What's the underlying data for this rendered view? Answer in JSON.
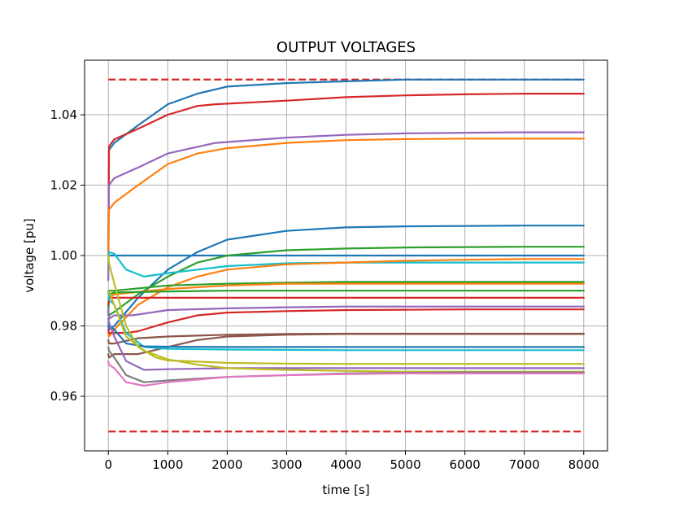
{
  "chart_data": {
    "type": "line",
    "title": "OUTPUT VOLTAGES",
    "xlabel": "time [s]",
    "ylabel": "voltage [pu]",
    "xlim": [
      -400,
      8400
    ],
    "ylim": [
      0.9445,
      1.0555
    ],
    "x_ticks": [
      0,
      1000,
      2000,
      3000,
      4000,
      5000,
      6000,
      7000,
      8000
    ],
    "x_tick_labels": [
      "0",
      "1000",
      "2000",
      "3000",
      "4000",
      "5000",
      "6000",
      "7000",
      "8000"
    ],
    "y_ticks": [
      0.96,
      0.98,
      1.0,
      1.02,
      1.04
    ],
    "y_tick_labels": [
      "0.96",
      "0.98",
      "1.00",
      "1.02",
      "1.04"
    ],
    "grid": true,
    "limits": [
      {
        "value": 1.05,
        "color": "#d62728",
        "style": "dashed"
      },
      {
        "value": 0.95,
        "color": "#d62728",
        "style": "dashed"
      }
    ],
    "series": [
      {
        "color": "#1f77b4",
        "x": [
          0,
          10,
          100,
          500,
          1000,
          1500,
          2000,
          3000,
          4000,
          5000,
          6000,
          7000,
          8000
        ],
        "y": [
          1.0,
          1.03,
          1.032,
          1.037,
          1.043,
          1.046,
          1.048,
          1.049,
          1.0495,
          1.05,
          1.05,
          1.05,
          1.05
        ]
      },
      {
        "color": "#d62728",
        "x": [
          0,
          10,
          100,
          500,
          1000,
          1500,
          1800,
          3000,
          4000,
          5000,
          6000,
          7000,
          8000
        ],
        "y": [
          1.0,
          1.031,
          1.033,
          1.036,
          1.04,
          1.0425,
          1.043,
          1.044,
          1.045,
          1.0455,
          1.0458,
          1.046,
          1.046
        ]
      },
      {
        "color": "#9467bd",
        "x": [
          0,
          10,
          100,
          500,
          1000,
          1800,
          3000,
          4000,
          5000,
          6000,
          7000,
          8000
        ],
        "y": [
          0.993,
          1.02,
          1.022,
          1.025,
          1.029,
          1.032,
          1.0335,
          1.0343,
          1.0347,
          1.0349,
          1.035,
          1.035
        ]
      },
      {
        "color": "#ff7f0e",
        "x": [
          0,
          10,
          100,
          500,
          1000,
          1500,
          2000,
          3000,
          4000,
          5000,
          6000,
          7000,
          8000
        ],
        "y": [
          1.0,
          1.013,
          1.015,
          1.02,
          1.026,
          1.029,
          1.0305,
          1.032,
          1.0328,
          1.0331,
          1.0332,
          1.0332,
          1.0332
        ]
      },
      {
        "color": "#1f77b4",
        "x": [
          0,
          10,
          100,
          500,
          1000,
          1500,
          2000,
          3000,
          4000,
          5000,
          6000,
          7000,
          8000
        ],
        "y": [
          0.98,
          0.979,
          0.98,
          0.988,
          0.996,
          1.001,
          1.0045,
          1.007,
          1.008,
          1.0083,
          1.0084,
          1.0085,
          1.0085
        ]
      },
      {
        "color": "#1f77b4",
        "x": [
          0,
          8000
        ],
        "y": [
          1.0,
          1.0
        ]
      },
      {
        "color": "#2ca02c",
        "x": [
          0,
          10,
          100,
          500,
          1000,
          1500,
          2000,
          3000,
          4000,
          5000,
          6000,
          7000,
          8000
        ],
        "y": [
          0.984,
          0.983,
          0.984,
          0.989,
          0.994,
          0.998,
          1.0,
          1.0015,
          1.002,
          1.0023,
          1.0024,
          1.0025,
          1.0025
        ]
      },
      {
        "color": "#17becf",
        "x": [
          0,
          10,
          100,
          300,
          600,
          1000,
          1500,
          2000,
          3000,
          4000,
          5000,
          6000,
          7000,
          8000
        ],
        "y": [
          0.998,
          1.001,
          1.0005,
          0.996,
          0.994,
          0.995,
          0.996,
          0.997,
          0.9978,
          0.998,
          0.998,
          0.998,
          0.998,
          0.998
        ]
      },
      {
        "color": "#ff7f0e",
        "x": [
          0,
          10,
          100,
          500,
          1000,
          1500,
          2000,
          3000,
          4000,
          5000,
          6000,
          7000,
          8000
        ],
        "y": [
          0.978,
          0.977,
          0.979,
          0.986,
          0.991,
          0.994,
          0.996,
          0.9975,
          0.998,
          0.9985,
          0.9988,
          0.999,
          0.999
        ]
      },
      {
        "color": "#2ca02c",
        "x": [
          0,
          10,
          100,
          1000,
          2000,
          3000,
          4000,
          5000,
          6000,
          7000,
          8000
        ],
        "y": [
          0.984,
          0.99,
          0.99,
          0.9915,
          0.992,
          0.9923,
          0.9925,
          0.9925,
          0.9925,
          0.9925,
          0.9925
        ]
      },
      {
        "color": "#ff7f0e",
        "x": [
          0,
          10,
          100,
          1000,
          2000,
          3000,
          4000,
          5000,
          6000,
          7000,
          8000
        ],
        "y": [
          0.984,
          0.988,
          0.989,
          0.9905,
          0.9915,
          0.992,
          0.992,
          0.992,
          0.992,
          0.992,
          0.992
        ]
      },
      {
        "color": "#2ca02c",
        "x": [
          0,
          10,
          100,
          1000,
          2000,
          3000,
          4000,
          5000,
          6000,
          7000,
          8000
        ],
        "y": [
          0.983,
          0.989,
          0.9895,
          0.9898,
          0.99,
          0.99,
          0.99,
          0.99,
          0.99,
          0.99,
          0.99
        ]
      },
      {
        "color": "#d62728",
        "x": [
          0,
          10,
          100,
          1000,
          2000,
          3000,
          4000,
          5000,
          6000,
          7000,
          8000
        ],
        "y": [
          0.986,
          0.988,
          0.988,
          0.988,
          0.988,
          0.988,
          0.988,
          0.988,
          0.988,
          0.988,
          0.988
        ]
      },
      {
        "color": "#9467bd",
        "x": [
          0,
          10,
          100,
          400,
          1000,
          2000,
          3000,
          4000,
          5000,
          6000,
          7000,
          8000
        ],
        "y": [
          0.985,
          0.982,
          0.983,
          0.983,
          0.9845,
          0.985,
          0.9853,
          0.9855,
          0.9855,
          0.9855,
          0.9855,
          0.9855
        ]
      },
      {
        "color": "#d62728",
        "x": [
          0,
          10,
          100,
          300,
          500,
          1000,
          1500,
          2000,
          3000,
          4000,
          5000,
          6000,
          7000,
          8000
        ],
        "y": [
          0.979,
          0.978,
          0.978,
          0.978,
          0.9785,
          0.981,
          0.983,
          0.9838,
          0.9842,
          0.9845,
          0.9846,
          0.9847,
          0.9847,
          0.9847
        ]
      },
      {
        "color": "#8c564b",
        "x": [
          0,
          10,
          100,
          500,
          1000,
          2000,
          3000,
          4000,
          5000,
          6000,
          7000,
          8000
        ],
        "y": [
          0.976,
          0.975,
          0.975,
          0.9765,
          0.977,
          0.9775,
          0.9777,
          0.9778,
          0.9778,
          0.9778,
          0.9778,
          0.9778
        ]
      },
      {
        "color": "#8c564b",
        "x": [
          0,
          10,
          100,
          500,
          1000,
          1500,
          2000,
          3000,
          4000,
          5000,
          6000,
          7000,
          8000
        ],
        "y": [
          0.972,
          0.971,
          0.972,
          0.972,
          0.974,
          0.976,
          0.977,
          0.9775,
          0.9777,
          0.9777,
          0.9777,
          0.9777,
          0.9777
        ]
      },
      {
        "color": "#17becf",
        "x": [
          0,
          10,
          100,
          300,
          600,
          1000,
          2000,
          3000,
          4000,
          5000,
          6000,
          7000,
          8000
        ],
        "y": [
          0.99,
          0.9875,
          0.986,
          0.978,
          0.974,
          0.9735,
          0.9733,
          0.9732,
          0.9731,
          0.9731,
          0.9731,
          0.9731,
          0.9731
        ]
      },
      {
        "color": "#1f77b4",
        "x": [
          0,
          10,
          100,
          300,
          600,
          1000,
          2000,
          3000,
          4000,
          5000,
          6000,
          7000,
          8000
        ],
        "y": [
          0.981,
          0.98,
          0.979,
          0.975,
          0.9742,
          0.9741,
          0.974,
          0.974,
          0.974,
          0.974,
          0.974,
          0.974,
          0.974
        ]
      },
      {
        "color": "#bcbd22",
        "x": [
          0,
          10,
          100,
          300,
          500,
          800,
          1000,
          2000,
          3000,
          4000,
          5000,
          6000,
          7000,
          8000
        ],
        "y": [
          1.0,
          0.998,
          0.992,
          0.98,
          0.974,
          0.971,
          0.9702,
          0.9695,
          0.9693,
          0.9692,
          0.9692,
          0.9692,
          0.9692,
          0.9692
        ]
      },
      {
        "color": "#9467bd",
        "x": [
          0,
          10,
          100,
          300,
          600,
          1000,
          2000,
          3000,
          4000,
          5000,
          6000,
          7000,
          8000
        ],
        "y": [
          0.982,
          0.981,
          0.977,
          0.97,
          0.9675,
          0.9677,
          0.968,
          0.968,
          0.968,
          0.968,
          0.968,
          0.968,
          0.968
        ]
      },
      {
        "color": "#bcbd22",
        "x": [
          0,
          10,
          100,
          300,
          600,
          1000,
          1500,
          2000,
          3000,
          4000,
          5000,
          6000,
          7000,
          8000
        ],
        "y": [
          0.99,
          0.9895,
          0.986,
          0.977,
          0.973,
          0.9705,
          0.969,
          0.968,
          0.9675,
          0.9672,
          0.967,
          0.967,
          0.967,
          0.967
        ]
      },
      {
        "color": "#7f7f7f",
        "x": [
          0,
          10,
          100,
          300,
          600,
          1000,
          2000,
          3000,
          4000,
          5000,
          6000,
          7000,
          8000
        ],
        "y": [
          0.974,
          0.973,
          0.971,
          0.966,
          0.964,
          0.9645,
          0.9655,
          0.966,
          0.9665,
          0.9667,
          0.9668,
          0.9668,
          0.9668
        ]
      },
      {
        "color": "#e377c2",
        "x": [
          0,
          10,
          100,
          300,
          600,
          1000,
          2000,
          3000,
          4000,
          5000,
          6000,
          7000,
          8000
        ],
        "y": [
          0.97,
          0.969,
          0.968,
          0.964,
          0.963,
          0.964,
          0.9655,
          0.966,
          0.9663,
          0.9665,
          0.9665,
          0.9665,
          0.9665
        ]
      }
    ]
  }
}
